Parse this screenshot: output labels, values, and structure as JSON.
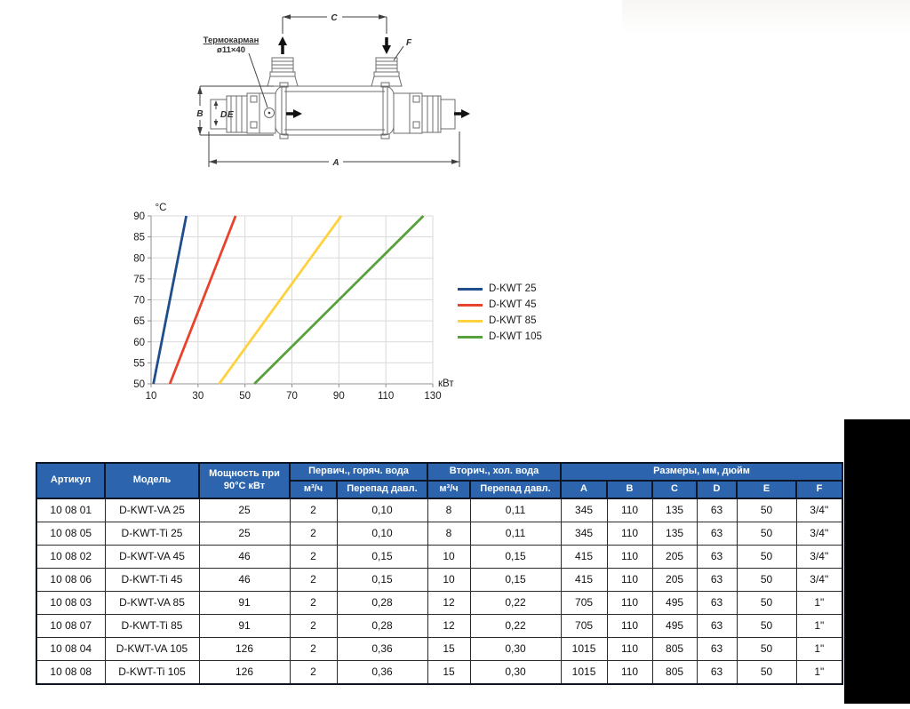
{
  "diagram": {
    "thermowell_label_line1": "Термокарман",
    "thermowell_label_line2": "ø11×40",
    "dim_labels": {
      "a": "A",
      "b": "B",
      "c": "C",
      "d": "D",
      "e": "E",
      "f": "F"
    }
  },
  "chart_data": {
    "type": "line",
    "title": "",
    "xlabel": "кВт",
    "ylabel": "°C",
    "xlim": [
      10,
      130
    ],
    "ylim": [
      50,
      90
    ],
    "xticks": [
      10,
      30,
      50,
      70,
      90,
      110,
      130
    ],
    "yticks": [
      50,
      55,
      60,
      65,
      70,
      75,
      80,
      85,
      90
    ],
    "grid": true,
    "legend_position": "right",
    "series": [
      {
        "name": "D-KWT 25",
        "color": "#1f4e8c",
        "points": [
          [
            11,
            50
          ],
          [
            25,
            90
          ]
        ]
      },
      {
        "name": "D-KWT 45",
        "color": "#e8432d",
        "points": [
          [
            18,
            50
          ],
          [
            46,
            90
          ]
        ]
      },
      {
        "name": "D-KWT 85",
        "color": "#fed23f",
        "points": [
          [
            39,
            50
          ],
          [
            91,
            90
          ]
        ]
      },
      {
        "name": "D-KWT 105",
        "color": "#57a03c",
        "points": [
          [
            54,
            50
          ],
          [
            126,
            90
          ]
        ]
      }
    ]
  },
  "table": {
    "header": {
      "artikul": "Артикул",
      "model": "Модель",
      "power": "Мощность при 90°C кВт",
      "primary": "Первич., горяч. вода",
      "secondary": "Вторич., хол. вода",
      "dimensions": "Размеры, мм, дюйм",
      "flow": "м³/ч",
      "pressure_drop": "Перепад давл.",
      "dim_cols": [
        "A",
        "B",
        "C",
        "D",
        "E",
        "F"
      ]
    },
    "rows": [
      [
        "10 08 01",
        "D-KWT-VA 25",
        "25",
        "2",
        "0,10",
        "8",
        "0,11",
        "345",
        "110",
        "135",
        "63",
        "50",
        "3/4\""
      ],
      [
        "10 08 05",
        "D-KWT-Ti 25",
        "25",
        "2",
        "0,10",
        "8",
        "0,11",
        "345",
        "110",
        "135",
        "63",
        "50",
        "3/4\""
      ],
      [
        "10 08 02",
        "D-KWT-VA 45",
        "46",
        "2",
        "0,15",
        "10",
        "0,15",
        "415",
        "110",
        "205",
        "63",
        "50",
        "3/4\""
      ],
      [
        "10 08 06",
        "D-KWT-Ti 45",
        "46",
        "2",
        "0,15",
        "10",
        "0,15",
        "415",
        "110",
        "205",
        "63",
        "50",
        "3/4\""
      ],
      [
        "10 08 03",
        "D-KWT-VA 85",
        "91",
        "2",
        "0,28",
        "12",
        "0,22",
        "705",
        "110",
        "495",
        "63",
        "50",
        "1\""
      ],
      [
        "10 08 07",
        "D-KWT-Ti 85",
        "91",
        "2",
        "0,28",
        "12",
        "0,22",
        "705",
        "110",
        "495",
        "63",
        "50",
        "1\""
      ],
      [
        "10 08 04",
        "D-KWT-VA 105",
        "126",
        "2",
        "0,36",
        "15",
        "0,30",
        "1015",
        "110",
        "805",
        "63",
        "50",
        "1\""
      ],
      [
        "10 08 08",
        "D-KWT-Ti 105",
        "126",
        "2",
        "0,36",
        "15",
        "0,30",
        "1015",
        "110",
        "805",
        "63",
        "50",
        "1\""
      ]
    ],
    "colors": {
      "header_bg": "#2c65ae",
      "header_text": "#ffffff",
      "border": "#0e1626"
    }
  }
}
